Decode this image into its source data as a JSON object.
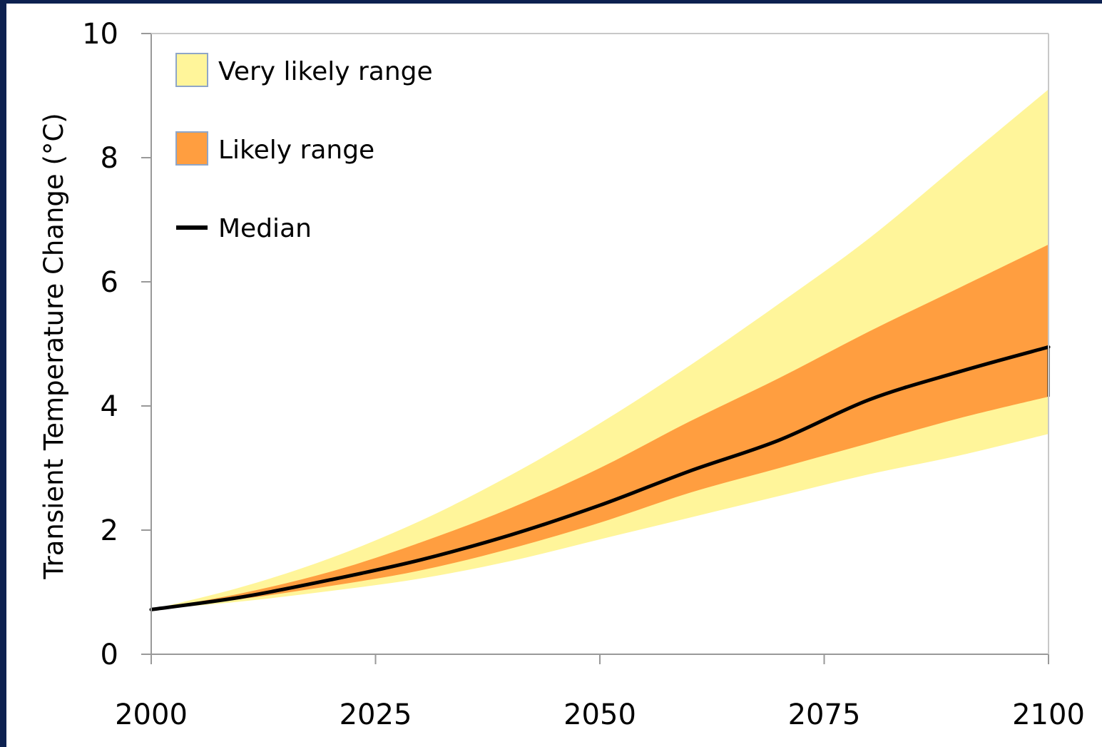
{
  "chart_data": {
    "type": "area",
    "title": "",
    "xlabel": "",
    "ylabel": "Transient Temperature Change (°C)",
    "xlim": [
      2000,
      2100
    ],
    "ylim": [
      0,
      10
    ],
    "x_ticks": [
      "2000",
      "2025",
      "2050",
      "2075",
      "2100"
    ],
    "y_ticks": [
      "0",
      "2",
      "4",
      "6",
      "8",
      "10"
    ],
    "grid": false,
    "legend_position": "top-left",
    "x": [
      2000,
      2010,
      2020,
      2030,
      2040,
      2050,
      2060,
      2070,
      2080,
      2090,
      2100
    ],
    "series": [
      {
        "name": "Very likely range",
        "kind": "band",
        "color": "#fff59a",
        "lower": [
          0.72,
          0.85,
          1.02,
          1.22,
          1.5,
          1.85,
          2.2,
          2.55,
          2.9,
          3.2,
          3.55
        ],
        "upper": [
          0.72,
          1.08,
          1.55,
          2.15,
          2.88,
          3.72,
          4.65,
          5.65,
          6.7,
          7.9,
          9.1
        ]
      },
      {
        "name": "Likely range",
        "kind": "band",
        "color": "#ff9e40",
        "lower": [
          0.72,
          0.89,
          1.1,
          1.35,
          1.7,
          2.12,
          2.6,
          3.0,
          3.4,
          3.8,
          4.15
        ],
        "upper": [
          0.72,
          0.98,
          1.33,
          1.8,
          2.35,
          3.0,
          3.75,
          4.45,
          5.2,
          5.9,
          6.6
        ]
      },
      {
        "name": "Median",
        "kind": "line",
        "color": "#000000",
        "values": [
          0.72,
          0.92,
          1.2,
          1.52,
          1.92,
          2.4,
          2.95,
          3.45,
          4.1,
          4.55,
          4.95
        ]
      }
    ]
  }
}
